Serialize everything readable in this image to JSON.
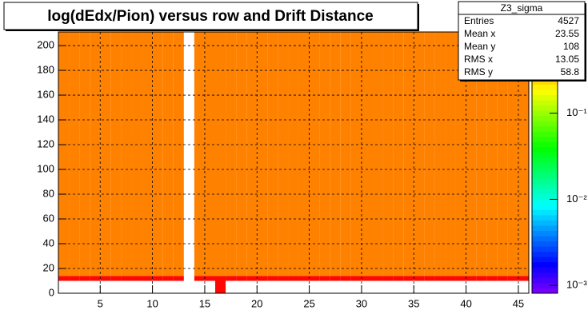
{
  "chart_data": {
    "type": "heatmap",
    "title": "log(dEdx/Pion) versus row and Drift Distance",
    "x_edges": [
      1,
      2,
      3,
      4,
      5,
      6,
      7,
      8,
      9,
      10,
      11,
      12,
      13,
      14,
      15,
      16,
      17,
      18,
      19,
      20,
      21,
      22,
      23,
      24,
      25,
      26,
      27,
      28,
      29,
      30,
      31,
      32,
      33,
      34,
      35,
      36,
      37,
      38,
      39,
      40,
      41,
      42,
      43,
      44,
      45,
      46
    ],
    "y_edges": [
      0,
      10,
      14,
      211
    ],
    "z": [
      [
        null,
        0.85,
        0.4
      ],
      [
        null,
        0.85,
        0.4
      ],
      [
        null,
        0.85,
        0.4
      ],
      [
        null,
        0.85,
        0.4
      ],
      [
        null,
        0.85,
        0.4
      ],
      [
        null,
        0.85,
        0.4
      ],
      [
        null,
        0.85,
        0.4
      ],
      [
        null,
        0.85,
        0.4
      ],
      [
        null,
        0.85,
        0.4
      ],
      [
        null,
        0.85,
        0.4
      ],
      [
        null,
        0.85,
        0.4
      ],
      [
        null,
        0.85,
        0.4
      ],
      [
        null,
        null,
        null
      ],
      [
        null,
        0.85,
        0.4
      ],
      [
        null,
        0.85,
        0.4
      ],
      [
        0.85,
        0.85,
        0.4
      ],
      [
        null,
        0.85,
        0.4
      ],
      [
        null,
        0.85,
        0.4
      ],
      [
        null,
        0.85,
        0.4
      ],
      [
        null,
        0.85,
        0.4
      ],
      [
        null,
        0.85,
        0.4
      ],
      [
        null,
        0.85,
        0.4
      ],
      [
        null,
        0.85,
        0.4
      ],
      [
        null,
        0.85,
        0.4
      ],
      [
        null,
        0.85,
        0.4
      ],
      [
        null,
        0.85,
        0.4
      ],
      [
        null,
        0.85,
        0.4
      ],
      [
        null,
        0.85,
        0.4
      ],
      [
        null,
        0.85,
        0.4
      ],
      [
        null,
        0.85,
        0.4
      ],
      [
        null,
        0.85,
        0.4
      ],
      [
        null,
        0.85,
        0.4
      ],
      [
        null,
        0.85,
        0.4
      ],
      [
        null,
        0.85,
        0.4
      ],
      [
        null,
        0.85,
        0.4
      ],
      [
        null,
        0.85,
        0.4
      ],
      [
        null,
        0.85,
        0.4
      ],
      [
        null,
        0.85,
        0.4
      ],
      [
        null,
        0.85,
        0.4
      ],
      [
        null,
        0.85,
        0.4
      ],
      [
        null,
        0.85,
        0.4
      ],
      [
        null,
        0.85,
        0.4
      ],
      [
        null,
        0.85,
        0.4
      ],
      [
        null,
        0.85,
        0.4
      ],
      [
        null,
        0.85,
        0.4
      ]
    ],
    "xlim": [
      1,
      46
    ],
    "xticks": [
      5,
      10,
      15,
      20,
      25,
      30,
      35,
      40,
      45
    ],
    "ylim": [
      0,
      211
    ],
    "yticks": [
      0,
      20,
      40,
      60,
      80,
      100,
      120,
      140,
      160,
      180,
      200
    ],
    "zlim": [
      0.00081,
      0.88
    ],
    "zscale": "log",
    "zticks": [
      {
        "value": 0.1,
        "label": "10⁻¹"
      },
      {
        "value": 0.01,
        "label": "10⁻²"
      },
      {
        "value": 0.001,
        "label": "10⁻³"
      }
    ],
    "grid": true,
    "stats": {
      "name": "Z3_sigma",
      "rows": [
        {
          "label": "Entries",
          "value": 4527
        },
        {
          "label": "Mean x",
          "value": 23.55
        },
        {
          "label": "Mean y",
          "value": 108
        },
        {
          "label": "RMS x",
          "value": 13.05
        },
        {
          "label": "RMS y",
          "value": 58.8
        }
      ]
    }
  }
}
